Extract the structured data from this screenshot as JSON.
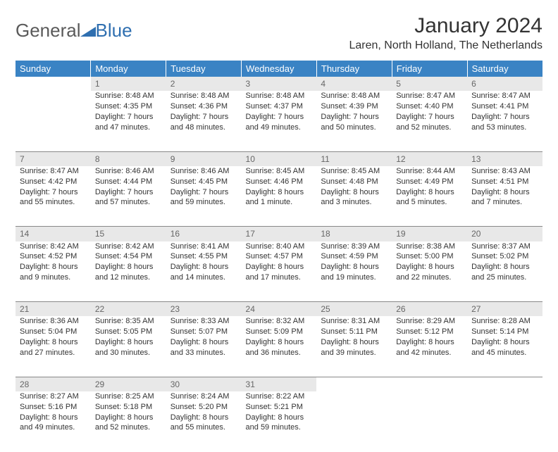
{
  "logo": {
    "text1": "General",
    "text2": "Blue"
  },
  "title": "January 2024",
  "location": "Laren, North Holland, The Netherlands",
  "colors": {
    "header_bg": "#3a83c4",
    "header_fg": "#ffffff",
    "daynum_bg": "#e8e8e8",
    "daynum_fg": "#666666",
    "text": "#333333",
    "logo_gray": "#5a5a5a",
    "logo_blue": "#2f6fb0",
    "rule": "#888888"
  },
  "typography": {
    "title_fontsize": 30,
    "location_fontsize": 16,
    "header_fontsize": 13,
    "cell_fontsize": 11
  },
  "days": [
    "Sunday",
    "Monday",
    "Tuesday",
    "Wednesday",
    "Thursday",
    "Friday",
    "Saturday"
  ],
  "weeks": [
    [
      null,
      {
        "n": "1",
        "sr": "Sunrise: 8:48 AM",
        "ss": "Sunset: 4:35 PM",
        "d1": "Daylight: 7 hours",
        "d2": "and 47 minutes."
      },
      {
        "n": "2",
        "sr": "Sunrise: 8:48 AM",
        "ss": "Sunset: 4:36 PM",
        "d1": "Daylight: 7 hours",
        "d2": "and 48 minutes."
      },
      {
        "n": "3",
        "sr": "Sunrise: 8:48 AM",
        "ss": "Sunset: 4:37 PM",
        "d1": "Daylight: 7 hours",
        "d2": "and 49 minutes."
      },
      {
        "n": "4",
        "sr": "Sunrise: 8:48 AM",
        "ss": "Sunset: 4:39 PM",
        "d1": "Daylight: 7 hours",
        "d2": "and 50 minutes."
      },
      {
        "n": "5",
        "sr": "Sunrise: 8:47 AM",
        "ss": "Sunset: 4:40 PM",
        "d1": "Daylight: 7 hours",
        "d2": "and 52 minutes."
      },
      {
        "n": "6",
        "sr": "Sunrise: 8:47 AM",
        "ss": "Sunset: 4:41 PM",
        "d1": "Daylight: 7 hours",
        "d2": "and 53 minutes."
      }
    ],
    [
      {
        "n": "7",
        "sr": "Sunrise: 8:47 AM",
        "ss": "Sunset: 4:42 PM",
        "d1": "Daylight: 7 hours",
        "d2": "and 55 minutes."
      },
      {
        "n": "8",
        "sr": "Sunrise: 8:46 AM",
        "ss": "Sunset: 4:44 PM",
        "d1": "Daylight: 7 hours",
        "d2": "and 57 minutes."
      },
      {
        "n": "9",
        "sr": "Sunrise: 8:46 AM",
        "ss": "Sunset: 4:45 PM",
        "d1": "Daylight: 7 hours",
        "d2": "and 59 minutes."
      },
      {
        "n": "10",
        "sr": "Sunrise: 8:45 AM",
        "ss": "Sunset: 4:46 PM",
        "d1": "Daylight: 8 hours",
        "d2": "and 1 minute."
      },
      {
        "n": "11",
        "sr": "Sunrise: 8:45 AM",
        "ss": "Sunset: 4:48 PM",
        "d1": "Daylight: 8 hours",
        "d2": "and 3 minutes."
      },
      {
        "n": "12",
        "sr": "Sunrise: 8:44 AM",
        "ss": "Sunset: 4:49 PM",
        "d1": "Daylight: 8 hours",
        "d2": "and 5 minutes."
      },
      {
        "n": "13",
        "sr": "Sunrise: 8:43 AM",
        "ss": "Sunset: 4:51 PM",
        "d1": "Daylight: 8 hours",
        "d2": "and 7 minutes."
      }
    ],
    [
      {
        "n": "14",
        "sr": "Sunrise: 8:42 AM",
        "ss": "Sunset: 4:52 PM",
        "d1": "Daylight: 8 hours",
        "d2": "and 9 minutes."
      },
      {
        "n": "15",
        "sr": "Sunrise: 8:42 AM",
        "ss": "Sunset: 4:54 PM",
        "d1": "Daylight: 8 hours",
        "d2": "and 12 minutes."
      },
      {
        "n": "16",
        "sr": "Sunrise: 8:41 AM",
        "ss": "Sunset: 4:55 PM",
        "d1": "Daylight: 8 hours",
        "d2": "and 14 minutes."
      },
      {
        "n": "17",
        "sr": "Sunrise: 8:40 AM",
        "ss": "Sunset: 4:57 PM",
        "d1": "Daylight: 8 hours",
        "d2": "and 17 minutes."
      },
      {
        "n": "18",
        "sr": "Sunrise: 8:39 AM",
        "ss": "Sunset: 4:59 PM",
        "d1": "Daylight: 8 hours",
        "d2": "and 19 minutes."
      },
      {
        "n": "19",
        "sr": "Sunrise: 8:38 AM",
        "ss": "Sunset: 5:00 PM",
        "d1": "Daylight: 8 hours",
        "d2": "and 22 minutes."
      },
      {
        "n": "20",
        "sr": "Sunrise: 8:37 AM",
        "ss": "Sunset: 5:02 PM",
        "d1": "Daylight: 8 hours",
        "d2": "and 25 minutes."
      }
    ],
    [
      {
        "n": "21",
        "sr": "Sunrise: 8:36 AM",
        "ss": "Sunset: 5:04 PM",
        "d1": "Daylight: 8 hours",
        "d2": "and 27 minutes."
      },
      {
        "n": "22",
        "sr": "Sunrise: 8:35 AM",
        "ss": "Sunset: 5:05 PM",
        "d1": "Daylight: 8 hours",
        "d2": "and 30 minutes."
      },
      {
        "n": "23",
        "sr": "Sunrise: 8:33 AM",
        "ss": "Sunset: 5:07 PM",
        "d1": "Daylight: 8 hours",
        "d2": "and 33 minutes."
      },
      {
        "n": "24",
        "sr": "Sunrise: 8:32 AM",
        "ss": "Sunset: 5:09 PM",
        "d1": "Daylight: 8 hours",
        "d2": "and 36 minutes."
      },
      {
        "n": "25",
        "sr": "Sunrise: 8:31 AM",
        "ss": "Sunset: 5:11 PM",
        "d1": "Daylight: 8 hours",
        "d2": "and 39 minutes."
      },
      {
        "n": "26",
        "sr": "Sunrise: 8:29 AM",
        "ss": "Sunset: 5:12 PM",
        "d1": "Daylight: 8 hours",
        "d2": "and 42 minutes."
      },
      {
        "n": "27",
        "sr": "Sunrise: 8:28 AM",
        "ss": "Sunset: 5:14 PM",
        "d1": "Daylight: 8 hours",
        "d2": "and 45 minutes."
      }
    ],
    [
      {
        "n": "28",
        "sr": "Sunrise: 8:27 AM",
        "ss": "Sunset: 5:16 PM",
        "d1": "Daylight: 8 hours",
        "d2": "and 49 minutes."
      },
      {
        "n": "29",
        "sr": "Sunrise: 8:25 AM",
        "ss": "Sunset: 5:18 PM",
        "d1": "Daylight: 8 hours",
        "d2": "and 52 minutes."
      },
      {
        "n": "30",
        "sr": "Sunrise: 8:24 AM",
        "ss": "Sunset: 5:20 PM",
        "d1": "Daylight: 8 hours",
        "d2": "and 55 minutes."
      },
      {
        "n": "31",
        "sr": "Sunrise: 8:22 AM",
        "ss": "Sunset: 5:21 PM",
        "d1": "Daylight: 8 hours",
        "d2": "and 59 minutes."
      },
      null,
      null,
      null
    ]
  ]
}
